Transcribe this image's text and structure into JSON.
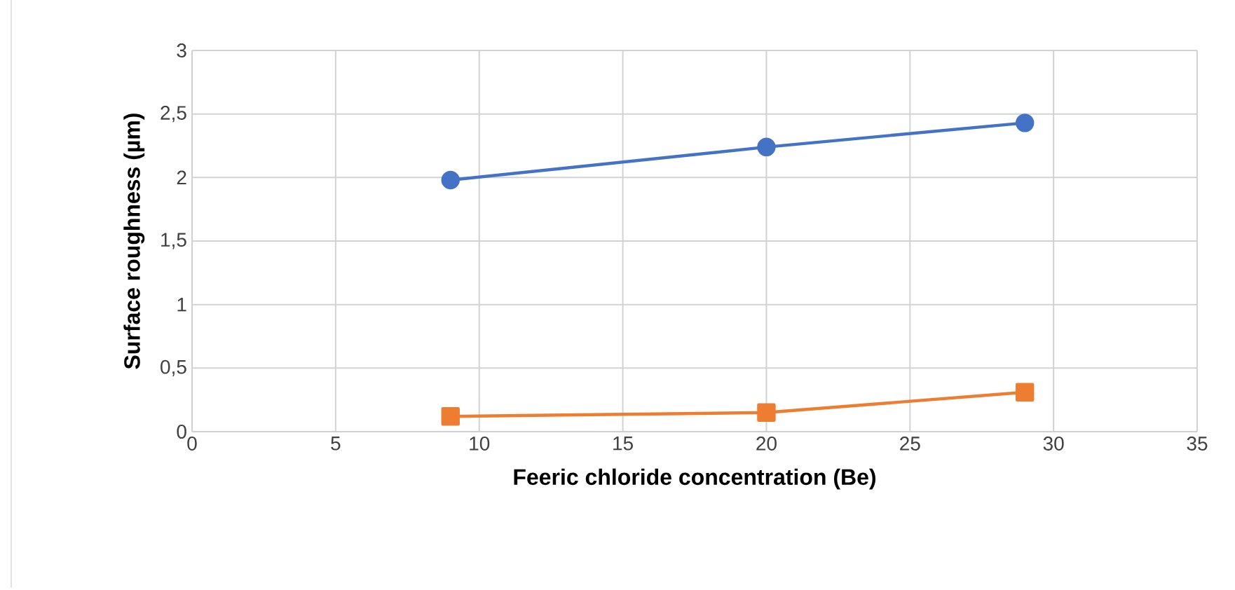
{
  "chart_data": {
    "type": "line",
    "xlabel": "Feeric chloride concentration (Be)",
    "ylabel": "Surface roughness (µm)",
    "x": [
      9,
      20,
      29
    ],
    "series": [
      {
        "color": "#4472c4",
        "values": [
          1.98,
          2.24,
          2.43
        ],
        "marker": "circle",
        "line_style": "solid"
      },
      {
        "color": "#ed7d31",
        "values": [
          0.12,
          0.15,
          0.31
        ],
        "marker": "square",
        "line_style": "solid"
      }
    ],
    "xlim": [
      0,
      35
    ],
    "xticks": [
      0,
      5,
      10,
      15,
      20,
      25,
      30,
      35
    ],
    "ylim": [
      0,
      3
    ],
    "yticks": [
      0,
      {
        "value": 0.5,
        "label": "0,5"
      },
      1,
      {
        "value": 1.5,
        "label": "1,5"
      },
      2,
      {
        "value": 2.5,
        "label": "2,5"
      },
      3
    ],
    "grid": true
  }
}
